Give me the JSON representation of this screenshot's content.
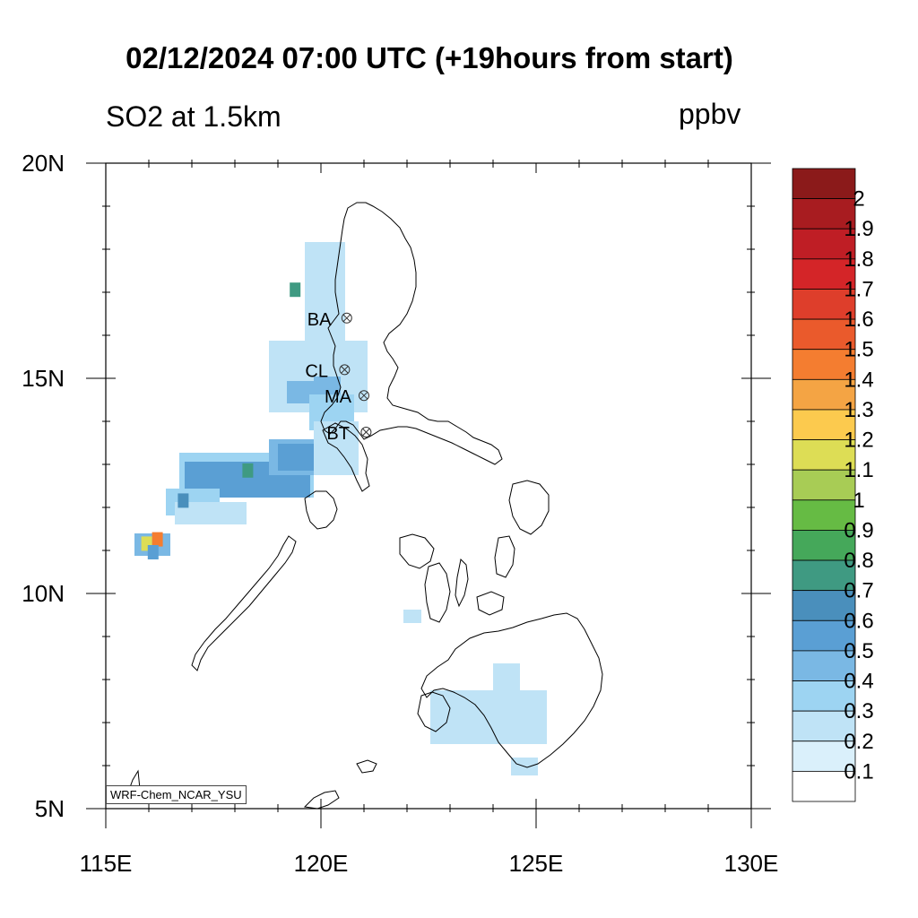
{
  "title": "02/12/2024 07:00 UTC (+19hours from start)",
  "subtitle": "SO2 at 1.5km",
  "units": "ppbv",
  "credit": "WRF-Chem_NCAR_YSU",
  "map": {
    "lon_range": [
      115,
      130
    ],
    "lat_range": [
      5,
      20
    ],
    "lon_ticks": [
      {
        "value": 115,
        "label": "115E"
      },
      {
        "value": 120,
        "label": "120E"
      },
      {
        "value": 125,
        "label": "125E"
      },
      {
        "value": 130,
        "label": "130E"
      }
    ],
    "lat_ticks": [
      {
        "value": 20,
        "label": "20N"
      },
      {
        "value": 15,
        "label": "15N"
      },
      {
        "value": 10,
        "label": "10N"
      },
      {
        "value": 5,
        "label": "5N"
      }
    ]
  },
  "sites": [
    {
      "code": "BA",
      "lon": 120.6,
      "lat": 16.4
    },
    {
      "code": "CL",
      "lon": 120.55,
      "lat": 15.2
    },
    {
      "code": "MA",
      "lon": 121.0,
      "lat": 14.6
    },
    {
      "code": "BT",
      "lon": 121.05,
      "lat": 13.75
    }
  ],
  "colorbar": {
    "labels": [
      "2",
      "1.9",
      "1.8",
      "1.7",
      "1.6",
      "1.5",
      "1.4",
      "1.3",
      "1.2",
      "1.1",
      "1",
      "0.9",
      "0.8",
      "0.7",
      "0.6",
      "0.5",
      "0.4",
      "0.3",
      "0.2",
      "0.1"
    ],
    "colors": [
      "#8b1a1a",
      "#a81c20",
      "#bf1e25",
      "#d42528",
      "#de3e2b",
      "#ea5a2c",
      "#f47d30",
      "#f4a444",
      "#fcca4e",
      "#dddd55",
      "#a8cc55",
      "#66bb44",
      "#45a85a",
      "#3f9a82",
      "#4a8fbc",
      "#5a9fd4",
      "#7ab8e4",
      "#9dd4f2",
      "#bfe3f6",
      "#daf0fb",
      "#ffffff"
    ]
  },
  "field": [
    {
      "lon": 116.2,
      "lat": 11.3,
      "value": 1.45
    },
    {
      "lon": 115.95,
      "lat": 11.2,
      "value": 1.2
    },
    {
      "lon": 116.1,
      "lat": 11.0,
      "value": 0.6
    },
    {
      "lon": 118.3,
      "lat": 12.9,
      "value": 0.75
    },
    {
      "lon": 119.4,
      "lat": 17.1,
      "value": 0.75
    },
    {
      "lon": 116.8,
      "lat": 12.2,
      "value": 0.7
    }
  ]
}
